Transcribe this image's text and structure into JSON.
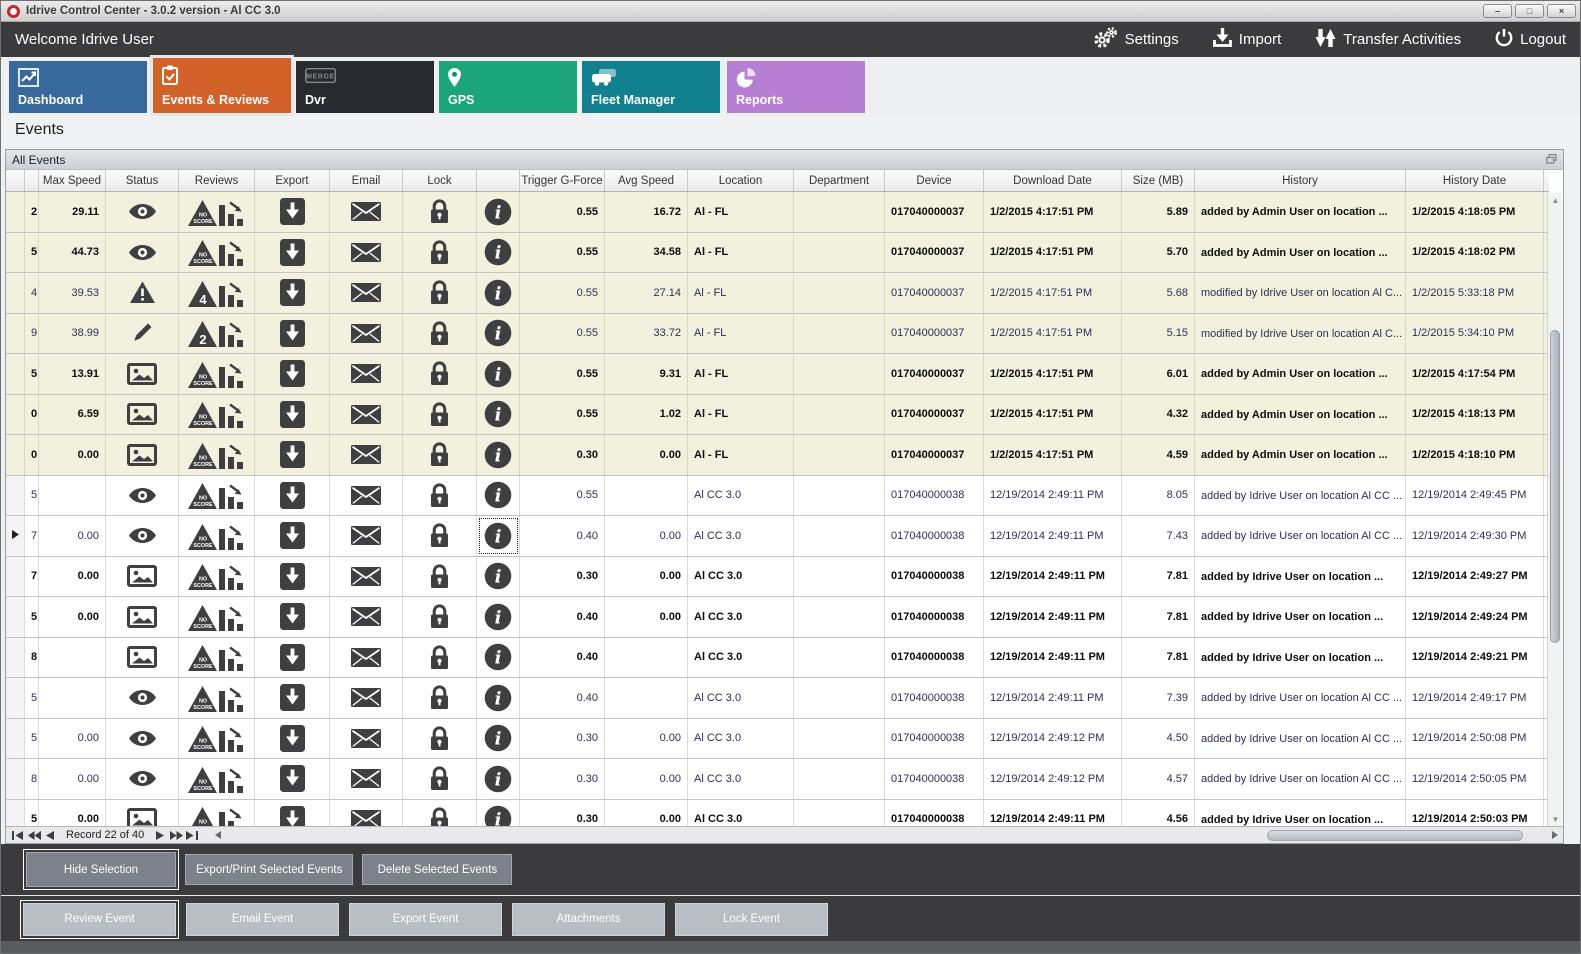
{
  "window": {
    "title": "Idrive Control Center - 3.0.2 version - Al CC 3.0",
    "controls": {
      "minimize": "–",
      "maximize": "□",
      "close": "×"
    }
  },
  "topbar": {
    "welcome": "Welcome Idrive User",
    "actions": [
      {
        "id": "settings",
        "label": "Settings"
      },
      {
        "id": "import",
        "label": "Import"
      },
      {
        "id": "transfer",
        "label": "Transfer Activities"
      },
      {
        "id": "logout",
        "label": "Logout"
      }
    ]
  },
  "tabs": [
    {
      "label": "Dashboard",
      "color": "#38699d",
      "selected": false
    },
    {
      "label": "Events & Reviews",
      "color": "#d2622a",
      "selected": true
    },
    {
      "label": "Dvr",
      "color": "#26292e",
      "selected": false
    },
    {
      "label": "GPS",
      "color": "#1ca578",
      "selected": false
    },
    {
      "label": "Fleet Manager",
      "color": "#11808f",
      "selected": false
    },
    {
      "label": "Reports",
      "color": "#b67fd3",
      "selected": false
    }
  ],
  "page_title": "Events",
  "panel": {
    "title": "All Events"
  },
  "table": {
    "columns": [
      "",
      "",
      "Max Speed",
      "Status",
      "Reviews",
      "Export",
      "Email",
      "Lock",
      "",
      "Trigger G-Force",
      "Avg Speed",
      "Location",
      "Department",
      "Device",
      "Download Date",
      "Size (MB)",
      "History",
      "History Date"
    ],
    "rows": [
      {
        "id_tail": "2",
        "max_speed": "29.11",
        "status": "eye",
        "review": "no",
        "gforce": "0.55",
        "avg_speed": "16.72",
        "location": "Al - FL",
        "department": "",
        "device": "017040000037",
        "download_date": "1/2/2015 4:17:51 PM",
        "size": "5.89",
        "history": "added by Admin User on location ...",
        "history_date": "1/2/2015 4:18:05 PM",
        "yellow": true,
        "bold": true,
        "focused": false
      },
      {
        "id_tail": "5",
        "max_speed": "44.73",
        "status": "eye",
        "review": "no",
        "gforce": "0.55",
        "avg_speed": "34.58",
        "location": "Al - FL",
        "department": "",
        "device": "017040000037",
        "download_date": "1/2/2015 4:17:51 PM",
        "size": "5.70",
        "history": "added by Admin User on location ...",
        "history_date": "1/2/2015 4:18:02 PM",
        "yellow": true,
        "bold": true,
        "focused": false
      },
      {
        "id_tail": "4",
        "max_speed": "39.53",
        "status": "warning",
        "review": "4",
        "gforce": "0.55",
        "avg_speed": "27.14",
        "location": "Al - FL",
        "department": "",
        "device": "017040000037",
        "download_date": "1/2/2015 4:17:51 PM",
        "size": "5.68",
        "history": "modified by Idrive User on location Al C...",
        "history_date": "1/2/2015 5:33:18 PM",
        "yellow": true,
        "bold": false,
        "focused": false
      },
      {
        "id_tail": "9",
        "max_speed": "38.99",
        "status": "pencil",
        "review": "2",
        "gforce": "0.55",
        "avg_speed": "33.72",
        "location": "Al - FL",
        "department": "",
        "device": "017040000037",
        "download_date": "1/2/2015 4:17:51 PM",
        "size": "5.15",
        "history": "modified by Idrive User on location Al C...",
        "history_date": "1/2/2015 5:34:10 PM",
        "yellow": true,
        "bold": false,
        "focused": false
      },
      {
        "id_tail": "5",
        "max_speed": "13.91",
        "status": "image",
        "review": "no",
        "gforce": "0.55",
        "avg_speed": "9.31",
        "location": "Al - FL",
        "department": "",
        "device": "017040000037",
        "download_date": "1/2/2015 4:17:51 PM",
        "size": "6.01",
        "history": "added by Admin User on location ...",
        "history_date": "1/2/2015 4:17:54 PM",
        "yellow": true,
        "bold": true,
        "focused": false
      },
      {
        "id_tail": "0",
        "max_speed": "6.59",
        "status": "image",
        "review": "no",
        "gforce": "0.55",
        "avg_speed": "1.02",
        "location": "Al - FL",
        "department": "",
        "device": "017040000037",
        "download_date": "1/2/2015 4:17:51 PM",
        "size": "4.32",
        "history": "added by Admin User on location ...",
        "history_date": "1/2/2015 4:18:13 PM",
        "yellow": true,
        "bold": true,
        "focused": false
      },
      {
        "id_tail": "0",
        "max_speed": "0.00",
        "status": "image",
        "review": "no",
        "gforce": "0.30",
        "avg_speed": "0.00",
        "location": "Al - FL",
        "department": "",
        "device": "017040000037",
        "download_date": "1/2/2015 4:17:51 PM",
        "size": "4.59",
        "history": "added by Admin User on location ...",
        "history_date": "1/2/2015 4:18:10 PM",
        "yellow": true,
        "bold": true,
        "focused": false
      },
      {
        "id_tail": "5",
        "max_speed": "",
        "status": "eye",
        "review": "no",
        "gforce": "0.55",
        "avg_speed": "",
        "location": "Al CC 3.0",
        "department": "",
        "device": "017040000038",
        "download_date": "12/19/2014 2:49:11 PM",
        "size": "8.05",
        "history": "added by Idrive User on location Al CC ...",
        "history_date": "12/19/2014 2:49:45 PM",
        "yellow": false,
        "bold": false,
        "focused": false
      },
      {
        "id_tail": "7",
        "max_speed": "0.00",
        "status": "eye",
        "review": "no",
        "gforce": "0.40",
        "avg_speed": "0.00",
        "location": "Al CC 3.0",
        "department": "",
        "device": "017040000038",
        "download_date": "12/19/2014 2:49:11 PM",
        "size": "7.43",
        "history": "added by Idrive User on location Al CC ...",
        "history_date": "12/19/2014 2:49:30 PM",
        "yellow": false,
        "bold": false,
        "focused": true
      },
      {
        "id_tail": "7",
        "max_speed": "0.00",
        "status": "image",
        "review": "no",
        "gforce": "0.30",
        "avg_speed": "0.00",
        "location": "Al CC 3.0",
        "department": "",
        "device": "017040000038",
        "download_date": "12/19/2014 2:49:11 PM",
        "size": "7.81",
        "history": "added by Idrive User on location ...",
        "history_date": "12/19/2014 2:49:27 PM",
        "yellow": false,
        "bold": true,
        "focused": false
      },
      {
        "id_tail": "5",
        "max_speed": "0.00",
        "status": "image",
        "review": "no",
        "gforce": "0.40",
        "avg_speed": "0.00",
        "location": "Al CC 3.0",
        "department": "",
        "device": "017040000038",
        "download_date": "12/19/2014 2:49:11 PM",
        "size": "7.81",
        "history": "added by Idrive User on location ...",
        "history_date": "12/19/2014 2:49:24 PM",
        "yellow": false,
        "bold": true,
        "focused": false
      },
      {
        "id_tail": "8",
        "max_speed": "",
        "status": "image",
        "review": "no",
        "gforce": "0.40",
        "avg_speed": "",
        "location": "Al CC 3.0",
        "department": "",
        "device": "017040000038",
        "download_date": "12/19/2014 2:49:11 PM",
        "size": "7.81",
        "history": "added by Idrive User on location ...",
        "history_date": "12/19/2014 2:49:21 PM",
        "yellow": false,
        "bold": true,
        "focused": false
      },
      {
        "id_tail": "5",
        "max_speed": "",
        "status": "eye",
        "review": "no",
        "gforce": "0.40",
        "avg_speed": "",
        "location": "Al CC 3.0",
        "department": "",
        "device": "017040000038",
        "download_date": "12/19/2014 2:49:11 PM",
        "size": "7.39",
        "history": "added by Idrive User on location Al CC ...",
        "history_date": "12/19/2014 2:49:17 PM",
        "yellow": false,
        "bold": false,
        "focused": false
      },
      {
        "id_tail": "5",
        "max_speed": "0.00",
        "status": "eye",
        "review": "no",
        "gforce": "0.30",
        "avg_speed": "0.00",
        "location": "Al CC 3.0",
        "department": "",
        "device": "017040000038",
        "download_date": "12/19/2014 2:49:12 PM",
        "size": "4.50",
        "history": "added by Idrive User on location Al CC ...",
        "history_date": "12/19/2014 2:50:08 PM",
        "yellow": false,
        "bold": false,
        "focused": false
      },
      {
        "id_tail": "8",
        "max_speed": "0.00",
        "status": "eye",
        "review": "no",
        "gforce": "0.30",
        "avg_speed": "0.00",
        "location": "Al CC 3.0",
        "department": "",
        "device": "017040000038",
        "download_date": "12/19/2014 2:49:12 PM",
        "size": "4.57",
        "history": "added by Idrive User on location Al CC ...",
        "history_date": "12/19/2014 2:50:05 PM",
        "yellow": false,
        "bold": false,
        "focused": false
      },
      {
        "id_tail": "5",
        "max_speed": "0.00",
        "status": "image",
        "review": "no",
        "gforce": "0.30",
        "avg_speed": "0.00",
        "location": "Al CC 3.0",
        "department": "",
        "device": "017040000038",
        "download_date": "12/19/2014 2:49:11 PM",
        "size": "4.56",
        "history": "added by Idrive User on location ...",
        "history_date": "12/19/2014 2:50:03 PM",
        "yellow": false,
        "bold": true,
        "focused": false
      }
    ]
  },
  "pager": {
    "label": "Record 22 of 40"
  },
  "action_bars": {
    "row1": [
      "Hide Selection",
      "Export/Print Selected Events",
      "Delete Selected Events"
    ],
    "row2": [
      "Review Event",
      "Email Event",
      "Export Event",
      "Attachments",
      "Lock Event"
    ]
  },
  "colors": {
    "accent_orange": "#d2622a",
    "dark_bar": "#3b3b3d",
    "row_highlight": "#f1f1de"
  }
}
